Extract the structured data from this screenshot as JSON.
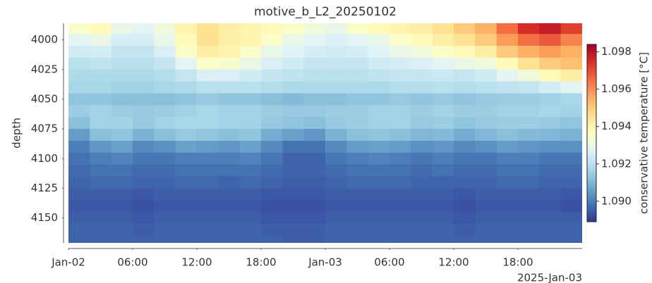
{
  "chart_data": {
    "type": "heatmap",
    "title": "motive_b_L2_20250102",
    "ylabel": "depth",
    "colorbar_label": "conservative temperature [°C]",
    "colormap": "RdYlBu_r",
    "colormap_colors": [
      "#313695",
      "#4575b4",
      "#74add1",
      "#abd9e9",
      "#e0f3f8",
      "#ffffbf",
      "#fee090",
      "#fdae61",
      "#f46d43",
      "#d73027",
      "#a50026"
    ],
    "clim": [
      1.0889,
      1.0984
    ],
    "cticks": [
      {
        "value": 1.09,
        "label": "1.090"
      },
      1.092,
      1.094,
      1.096,
      1.098
    ],
    "x_offset_label": "2025-Jan-03",
    "xlim": [
      "2025-01-02T00:00",
      "2025-01-04T00:00"
    ],
    "xticks": [
      {
        "value": "2025-01-02T00:00",
        "label": "Jan-02"
      },
      {
        "value": "2025-01-02T06:00",
        "label": "06:00"
      },
      {
        "value": "2025-01-02T12:00",
        "label": "12:00"
      },
      {
        "value": "2025-01-02T18:00",
        "label": "18:00"
      },
      {
        "value": "2025-01-03T00:00",
        "label": "Jan-03"
      },
      {
        "value": "2025-01-03T06:00",
        "label": "06:00"
      },
      {
        "value": "2025-01-03T12:00",
        "label": "12:00"
      },
      {
        "value": "2025-01-03T18:00",
        "label": "18:00"
      }
    ],
    "ylim": [
      3986,
      4171
    ],
    "yticks": [
      4000,
      4025,
      4050,
      4075,
      4100,
      4125,
      4150
    ],
    "x": [
      "2025-01-02T01:00",
      "2025-01-02T03:00",
      "2025-01-02T05:00",
      "2025-01-02T07:00",
      "2025-01-02T09:00",
      "2025-01-02T11:00",
      "2025-01-02T13:00",
      "2025-01-02T15:00",
      "2025-01-02T17:00",
      "2025-01-02T19:00",
      "2025-01-02T21:00",
      "2025-01-02T23:00",
      "2025-01-03T01:00",
      "2025-01-03T03:00",
      "2025-01-03T05:00",
      "2025-01-03T07:00",
      "2025-01-03T09:00",
      "2025-01-03T11:00",
      "2025-01-03T13:00",
      "2025-01-03T15:00",
      "2025-01-03T17:00",
      "2025-01-03T19:00",
      "2025-01-03T21:00",
      "2025-01-03T23:00"
    ],
    "y": [
      3990,
      4000,
      4010,
      4020,
      4030,
      4040,
      4050,
      4060,
      4070,
      4080,
      4090,
      4100,
      4110,
      4120,
      4130,
      4140,
      4150,
      4160,
      4170
    ],
    "z": [
      [
        1.0935,
        1.0938,
        1.093,
        1.0928,
        1.0932,
        1.094,
        1.0945,
        1.0942,
        1.094,
        1.0938,
        1.0935,
        1.0932,
        1.093,
        1.0935,
        1.0938,
        1.094,
        1.0942,
        1.0945,
        1.095,
        1.0955,
        1.0965,
        1.0975,
        1.0978,
        1.0972
      ],
      [
        1.0928,
        1.093,
        1.0925,
        1.0925,
        1.093,
        1.0938,
        1.0945,
        1.0942,
        1.094,
        1.0935,
        1.093,
        1.0928,
        1.0926,
        1.0928,
        1.093,
        1.0935,
        1.0938,
        1.0942,
        1.0945,
        1.095,
        1.0958,
        1.0965,
        1.0968,
        1.0962
      ],
      [
        1.0924,
        1.0925,
        1.0922,
        1.0922,
        1.0926,
        1.0935,
        1.0942,
        1.094,
        1.0935,
        1.093,
        1.0927,
        1.0925,
        1.0924,
        1.0925,
        1.0927,
        1.093,
        1.0932,
        1.0935,
        1.0938,
        1.0942,
        1.095,
        1.0955,
        1.0958,
        1.0955
      ],
      [
        1.092,
        1.0921,
        1.092,
        1.092,
        1.0922,
        1.0928,
        1.0935,
        1.0934,
        1.093,
        1.0926,
        1.0924,
        1.0922,
        1.0922,
        1.0922,
        1.0924,
        1.0925,
        1.0926,
        1.0928,
        1.093,
        1.0932,
        1.0938,
        1.0945,
        1.095,
        1.0952
      ],
      [
        1.0918,
        1.0918,
        1.0918,
        1.0918,
        1.0919,
        1.0922,
        1.0926,
        1.0926,
        1.0924,
        1.0922,
        1.0921,
        1.092,
        1.092,
        1.092,
        1.0921,
        1.0922,
        1.0922,
        1.0923,
        1.0922,
        1.0924,
        1.0928,
        1.0932,
        1.0938,
        1.0942
      ],
      [
        1.0917,
        1.0917,
        1.0916,
        1.0916,
        1.0917,
        1.0918,
        1.092,
        1.092,
        1.092,
        1.0919,
        1.0918,
        1.0918,
        1.0918,
        1.0918,
        1.0918,
        1.0919,
        1.0919,
        1.092,
        1.0919,
        1.092,
        1.0921,
        1.0922,
        1.0925,
        1.0928
      ],
      [
        1.0913,
        1.0913,
        1.0912,
        1.0912,
        1.0912,
        1.0913,
        1.0914,
        1.0913,
        1.0913,
        1.0912,
        1.0911,
        1.0912,
        1.0912,
        1.0913,
        1.0913,
        1.0914,
        1.0913,
        1.0914,
        1.0913,
        1.0914,
        1.0915,
        1.0915,
        1.0916,
        1.0917
      ],
      [
        1.0915,
        1.0916,
        1.0915,
        1.0914,
        1.0915,
        1.0916,
        1.0917,
        1.0916,
        1.0916,
        1.0915,
        1.0914,
        1.0914,
        1.0915,
        1.0915,
        1.0916,
        1.0916,
        1.0915,
        1.0916,
        1.0915,
        1.0915,
        1.0916,
        1.0916,
        1.0917,
        1.0916
      ],
      [
        1.0912,
        1.0916,
        1.0916,
        1.0914,
        1.0916,
        1.0917,
        1.0917,
        1.0916,
        1.0916,
        1.0914,
        1.0913,
        1.0912,
        1.0914,
        1.0915,
        1.0916,
        1.0916,
        1.0914,
        1.0915,
        1.0913,
        1.0914,
        1.0915,
        1.0915,
        1.0914,
        1.0913
      ],
      [
        1.0905,
        1.0912,
        1.0913,
        1.0909,
        1.0912,
        1.0914,
        1.0913,
        1.0912,
        1.0913,
        1.0908,
        1.0906,
        1.0904,
        1.0909,
        1.0912,
        1.0913,
        1.0912,
        1.091,
        1.0911,
        1.0908,
        1.091,
        1.0912,
        1.0911,
        1.091,
        1.0909
      ],
      [
        1.09,
        1.0904,
        1.0906,
        1.0902,
        1.0903,
        1.0906,
        1.0905,
        1.0904,
        1.0906,
        1.0902,
        1.0898,
        1.0898,
        1.0902,
        1.0905,
        1.0906,
        1.0905,
        1.0903,
        1.0904,
        1.0902,
        1.0903,
        1.0905,
        1.0904,
        1.0903,
        1.0903
      ],
      [
        1.0898,
        1.09,
        1.0901,
        1.0899,
        1.0899,
        1.09,
        1.09,
        1.09,
        1.0901,
        1.0899,
        1.0896,
        1.0896,
        1.0899,
        1.09,
        1.0901,
        1.09,
        1.0899,
        1.09,
        1.0899,
        1.0899,
        1.09,
        1.09,
        1.0899,
        1.0899
      ],
      [
        1.0897,
        1.0898,
        1.0898,
        1.0897,
        1.0897,
        1.0898,
        1.0898,
        1.0898,
        1.0898,
        1.0897,
        1.0896,
        1.0896,
        1.0897,
        1.0898,
        1.0898,
        1.0898,
        1.0897,
        1.0898,
        1.0897,
        1.0897,
        1.0898,
        1.0898,
        1.0897,
        1.0897
      ],
      [
        1.0896,
        1.0897,
        1.0897,
        1.0896,
        1.0896,
        1.0897,
        1.0897,
        1.0896,
        1.0897,
        1.0896,
        1.0895,
        1.0895,
        1.0896,
        1.0897,
        1.0897,
        1.0897,
        1.0896,
        1.0896,
        1.0896,
        1.0896,
        1.0897,
        1.0897,
        1.0896,
        1.0896
      ],
      [
        1.0895,
        1.0895,
        1.0895,
        1.0894,
        1.0895,
        1.0895,
        1.0895,
        1.0895,
        1.0895,
        1.0894,
        1.0894,
        1.0894,
        1.0895,
        1.0895,
        1.0895,
        1.0895,
        1.0895,
        1.0895,
        1.0894,
        1.0895,
        1.0895,
        1.0895,
        1.0895,
        1.0894
      ],
      [
        1.0894,
        1.0894,
        1.0894,
        1.0893,
        1.0894,
        1.0894,
        1.0894,
        1.0894,
        1.0894,
        1.0893,
        1.0893,
        1.0893,
        1.0894,
        1.0894,
        1.0894,
        1.0894,
        1.0894,
        1.0894,
        1.0893,
        1.0894,
        1.0894,
        1.0894,
        1.0894,
        1.0893
      ],
      [
        1.0895,
        1.0895,
        1.0895,
        1.0894,
        1.0895,
        1.0895,
        1.0895,
        1.0895,
        1.0895,
        1.0894,
        1.0894,
        1.0894,
        1.0895,
        1.0895,
        1.0895,
        1.0895,
        1.0895,
        1.0895,
        1.0894,
        1.0895,
        1.0895,
        1.0895,
        1.0895,
        1.0895
      ],
      [
        1.0896,
        1.0896,
        1.0896,
        1.0895,
        1.0896,
        1.0896,
        1.0896,
        1.0896,
        1.0896,
        1.0895,
        1.0895,
        1.0895,
        1.0896,
        1.0896,
        1.0896,
        1.0896,
        1.0896,
        1.0896,
        1.0895,
        1.0896,
        1.0896,
        1.0896,
        1.0896,
        1.0896
      ],
      [
        1.0896,
        1.0896,
        1.0896,
        1.0896,
        1.0896,
        1.0896,
        1.0896,
        1.0896,
        1.0896,
        1.0896,
        1.0895,
        1.0895,
        1.0896,
        1.0896,
        1.0896,
        1.0896,
        1.0896,
        1.0896,
        1.0896,
        1.0896,
        1.0896,
        1.0896,
        1.0896,
        1.0896
      ]
    ]
  }
}
